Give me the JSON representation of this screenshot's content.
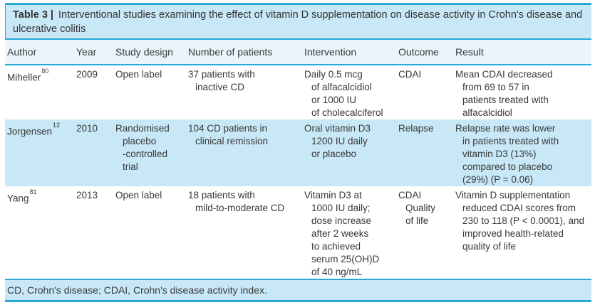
{
  "theme": {
    "accent": "#29aad6",
    "band_bg": "#c8e8f7",
    "header_bg": "#e9f5fb",
    "text": "#383838"
  },
  "table": {
    "title_prefix": "Table 3 |",
    "title_rest": "Interventional studies examining the effect of vitamin D supplementation on disease activity in Crohn's disease and ulcerative colitis",
    "columns": [
      "Author",
      "Year",
      "Study design",
      "Number of patients",
      "Intervention",
      "Outcome",
      "Result"
    ],
    "rows": [
      {
        "author": "Miheller",
        "ref": "80",
        "year": "2009",
        "study_design": [
          "Open label"
        ],
        "patients": [
          "37 patients with",
          "inactive CD"
        ],
        "intervention": [
          "Daily 0.5 mcg",
          "of alfacalcidiol",
          "or 1000 IU",
          "of cholecalciferol"
        ],
        "outcome": [
          "CDAI"
        ],
        "result": [
          "Mean CDAI decreased",
          "from 69 to 57 in",
          "patients treated with",
          "alfacalcidiol"
        ]
      },
      {
        "author": "Jorgensen",
        "ref": "12",
        "year": "2010",
        "study_design": [
          "Randomised",
          "placebo",
          "-controlled",
          "trial"
        ],
        "patients": [
          "104 CD patients in",
          "clinical remission"
        ],
        "intervention": [
          "Oral vitamin D3",
          "1200 IU daily",
          "or placebo"
        ],
        "outcome": [
          "Relapse"
        ],
        "result": [
          "Relapse rate was lower",
          "in patients treated with",
          "vitamin D3 (13%)",
          "compared to placebo",
          "(29%) (P = 0.06)"
        ]
      },
      {
        "author": "Yang",
        "ref": "81",
        "year": "2013",
        "study_design": [
          "Open label"
        ],
        "patients": [
          "18 patients with",
          "mild-to-moderate CD"
        ],
        "intervention": [
          "Vitamin D3 at",
          "1000 IU daily;",
          "dose increase",
          "after 2 weeks",
          "to achieved",
          "serum 25(OH)D",
          "of 40 ng/mL"
        ],
        "outcome": [
          "CDAI",
          "Quality",
          "of life"
        ],
        "result": [
          "Vitamin D supplementation",
          "reduced CDAI scores from",
          "230 to 118 (P < 0.0001), and",
          "improved health-related",
          "quality of life"
        ]
      }
    ],
    "footnote": "CD, Crohn's disease; CDAI, Crohn's disease activity index."
  }
}
